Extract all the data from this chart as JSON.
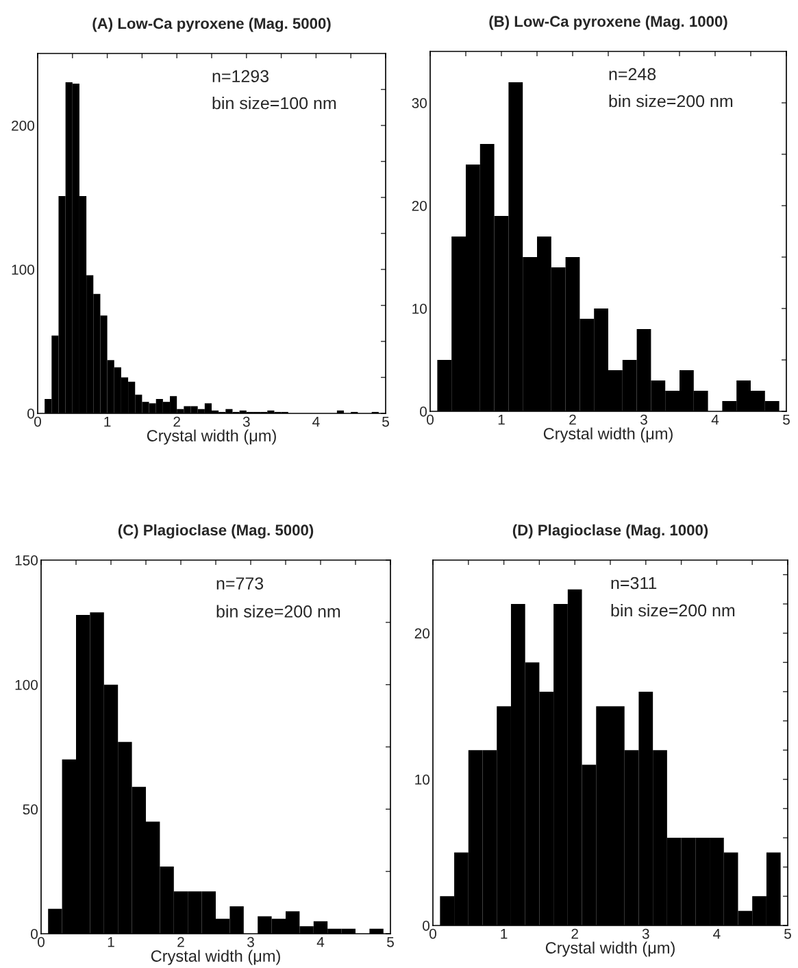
{
  "chart_data": [
    {
      "type": "histogram",
      "title": "(A) Low-Ca pyroxene (Mag. 5000)",
      "xlabel": "Crystal width (μm)",
      "annotations": [
        "n=1293",
        "bin size=100 nm"
      ],
      "bins": [
        0.1,
        0.2,
        0.3,
        0.4,
        0.5,
        0.6,
        0.7,
        0.8,
        0.9,
        1.0,
        1.1,
        1.2,
        1.3,
        1.4,
        1.5,
        1.6,
        1.7,
        1.8,
        1.9,
        2.0,
        2.1,
        2.2,
        2.3,
        2.4,
        2.5,
        2.6,
        2.7,
        2.8,
        2.9,
        3.0,
        3.1,
        3.2,
        3.3,
        3.4,
        3.5,
        3.6,
        3.7,
        3.8,
        3.9,
        4.0,
        4.1,
        4.2,
        4.3,
        4.4,
        4.5,
        4.6,
        4.7,
        4.8,
        4.9
      ],
      "values": [
        10,
        54,
        151,
        230,
        229,
        151,
        96,
        83,
        68,
        37,
        32,
        25,
        22,
        13,
        8,
        7,
        10,
        8,
        12,
        3,
        5,
        5,
        3,
        7,
        2,
        1,
        3,
        1,
        2,
        1,
        1,
        1,
        2,
        1,
        1,
        0,
        0,
        0,
        0,
        0,
        0,
        0,
        2,
        0,
        1,
        0,
        0,
        1
      ],
      "color": "#000000",
      "xlim": [
        0,
        5
      ],
      "ylim": [
        0,
        250
      ],
      "xticks": [
        0,
        {
          "value": 0.5,
          "label": null
        },
        1,
        {
          "value": 1.5,
          "label": null
        },
        2,
        {
          "value": 2.5,
          "label": null
        },
        3,
        {
          "value": 3.5,
          "label": null
        },
        4,
        {
          "value": 4.5,
          "label": null
        },
        5
      ],
      "yticks": [
        0,
        {
          "value": 25,
          "label": null
        },
        {
          "value": 50,
          "label": null
        },
        {
          "value": 75,
          "label": null
        },
        100,
        {
          "value": 125,
          "label": null
        },
        {
          "value": 150,
          "label": null
        },
        {
          "value": 175,
          "label": null
        },
        200,
        {
          "value": 225,
          "label": null
        }
      ]
    },
    {
      "type": "histogram",
      "title": "(B) Low-Ca pyroxene (Mag. 1000)",
      "xlabel": "Crystal width (μm)",
      "annotations": [
        "n=248",
        "bin size=200 nm"
      ],
      "bins": [
        0.1,
        0.3,
        0.5,
        0.7,
        0.9,
        1.1,
        1.3,
        1.5,
        1.7,
        1.9,
        2.1,
        2.3,
        2.5,
        2.7,
        2.9,
        3.1,
        3.3,
        3.5,
        3.7,
        3.9,
        4.1,
        4.3,
        4.5,
        4.7,
        4.9
      ],
      "values": [
        5,
        17,
        24,
        26,
        19,
        32,
        15,
        17,
        14,
        15,
        9,
        10,
        4,
        5,
        8,
        3,
        2,
        4,
        2,
        0,
        1,
        3,
        2,
        1
      ],
      "color": "#000000",
      "xlim": [
        0,
        5
      ],
      "ylim": [
        0,
        35
      ],
      "xticks": [
        0,
        {
          "value": 0.5,
          "label": null
        },
        1,
        {
          "value": 1.5,
          "label": null
        },
        2,
        {
          "value": 2.5,
          "label": null
        },
        3,
        {
          "value": 3.5,
          "label": null
        },
        4,
        {
          "value": 4.5,
          "label": null
        },
        5
      ],
      "yticks": [
        0,
        {
          "value": 5,
          "label": null
        },
        10,
        {
          "value": 15,
          "label": null
        },
        20,
        {
          "value": 25,
          "label": null
        },
        30
      ]
    },
    {
      "type": "histogram",
      "title": "(C) Plagioclase (Mag. 5000)",
      "xlabel": "Crystal width (μm)",
      "annotations": [
        "n=773",
        "bin size=200 nm"
      ],
      "bins": [
        0.1,
        0.3,
        0.5,
        0.7,
        0.9,
        1.1,
        1.3,
        1.5,
        1.7,
        1.9,
        2.1,
        2.3,
        2.5,
        2.7,
        2.9,
        3.1,
        3.3,
        3.5,
        3.7,
        3.9,
        4.1,
        4.3,
        4.5,
        4.7,
        4.9
      ],
      "values": [
        10,
        70,
        128,
        129,
        100,
        77,
        59,
        45,
        27,
        17,
        17,
        17,
        6,
        11,
        0,
        7,
        6,
        9,
        3,
        5,
        2,
        2,
        0,
        2
      ],
      "color": "#000000",
      "xlim": [
        0,
        5
      ],
      "ylim": [
        0,
        150
      ],
      "xticks": [
        0,
        {
          "value": 0.5,
          "label": null
        },
        1,
        {
          "value": 1.5,
          "label": null
        },
        2,
        {
          "value": 2.5,
          "label": null
        },
        3,
        {
          "value": 3.5,
          "label": null
        },
        4,
        {
          "value": 4.5,
          "label": null
        },
        5
      ],
      "yticks": [
        0,
        {
          "value": 25,
          "label": null
        },
        50,
        {
          "value": 75,
          "label": null
        },
        100,
        {
          "value": 125,
          "label": null
        },
        150
      ]
    },
    {
      "type": "histogram",
      "title": "(D) Plagioclase (Mag. 1000)",
      "xlabel": "Crystal width (μm)",
      "annotations": [
        "n=311",
        "bin size=200 nm"
      ],
      "bins": [
        0.1,
        0.3,
        0.5,
        0.7,
        0.9,
        1.1,
        1.3,
        1.5,
        1.7,
        1.9,
        2.1,
        2.3,
        2.5,
        2.7,
        2.9,
        3.1,
        3.3,
        3.5,
        3.7,
        3.9,
        4.1,
        4.3,
        4.5,
        4.7,
        4.9
      ],
      "values": [
        2,
        5,
        12,
        12,
        15,
        22,
        18,
        16,
        22,
        23,
        11,
        15,
        15,
        12,
        16,
        12,
        6,
        6,
        6,
        6,
        5,
        1,
        2,
        5
      ],
      "color": "#000000",
      "xlim": [
        0,
        5
      ],
      "ylim": [
        0,
        25
      ],
      "xticks": [
        0,
        {
          "value": 0.5,
          "label": null
        },
        1,
        {
          "value": 1.5,
          "label": null
        },
        2,
        {
          "value": 2.5,
          "label": null
        },
        3,
        {
          "value": 3.5,
          "label": null
        },
        4,
        {
          "value": 4.5,
          "label": null
        },
        5
      ],
      "yticks": [
        0,
        {
          "value": 2,
          "label": null
        },
        {
          "value": 4,
          "label": null
        },
        {
          "value": 6,
          "label": null
        },
        {
          "value": 8,
          "label": null
        },
        10,
        {
          "value": 12,
          "label": null
        },
        {
          "value": 14,
          "label": null
        },
        {
          "value": 16,
          "label": null
        },
        {
          "value": 18,
          "label": null
        },
        20,
        {
          "value": 22,
          "label": null
        },
        {
          "value": 24,
          "label": null
        }
      ]
    }
  ]
}
